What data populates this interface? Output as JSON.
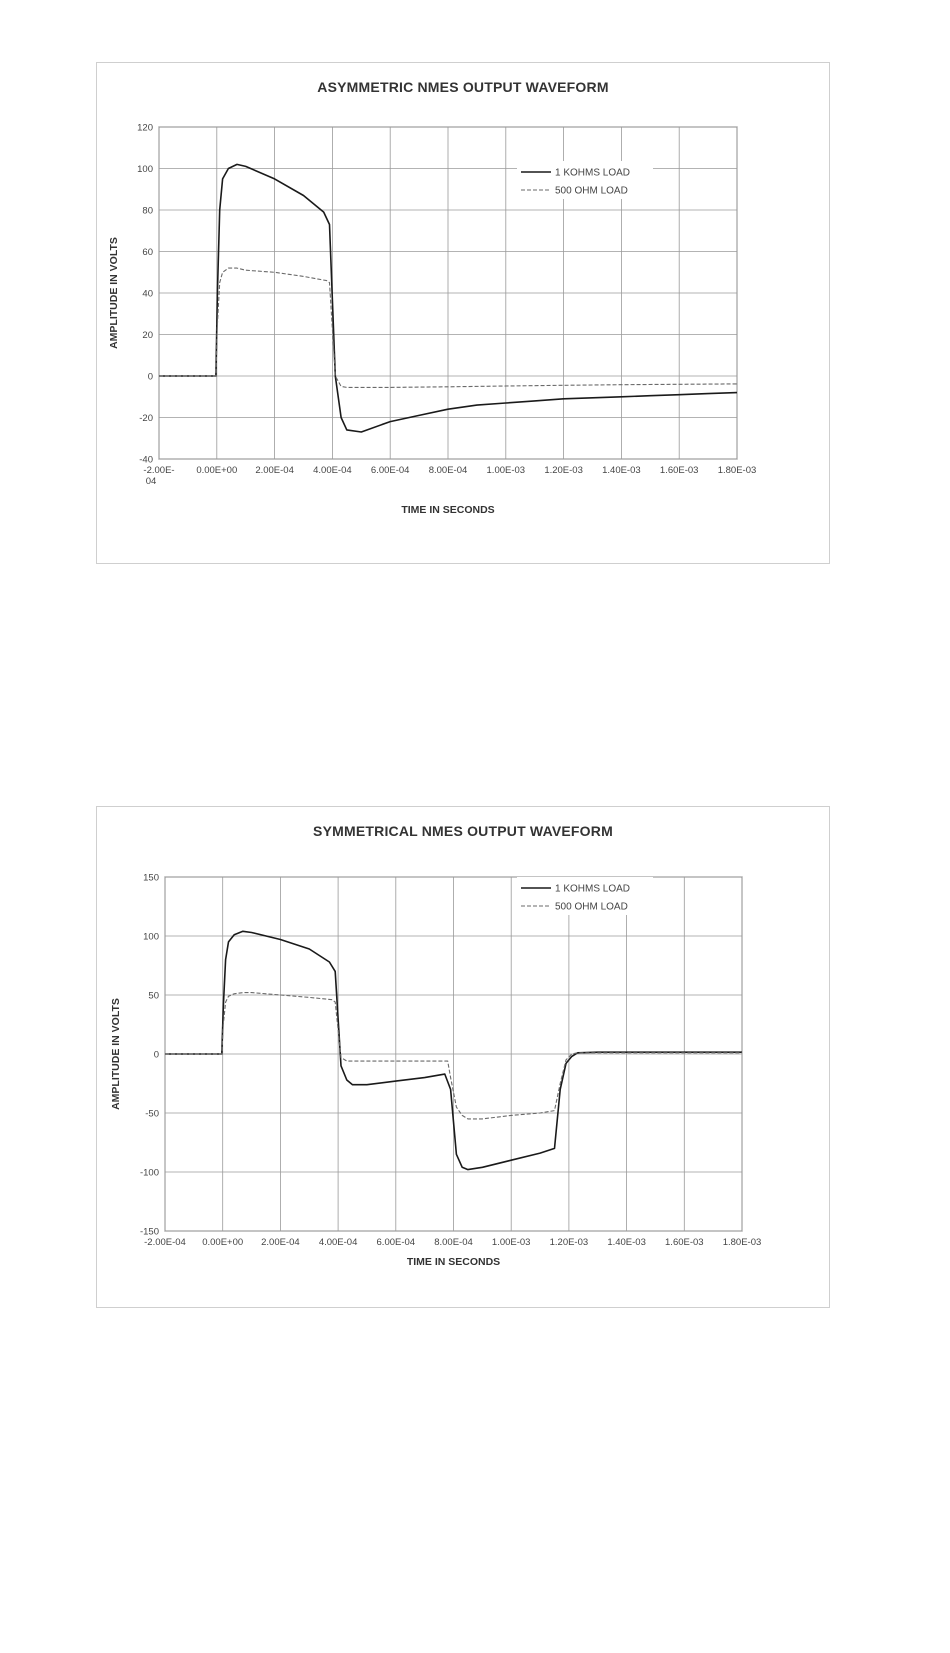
{
  "chart_data": [
    {
      "type": "line",
      "title": "ASYMMETRIC NMES OUTPUT WAVEFORM",
      "xlabel": "TIME IN SECONDS",
      "ylabel": "AMPLITUDE IN VOLTS",
      "xlim": [
        -0.0002,
        0.0018
      ],
      "ylim": [
        -40,
        120
      ],
      "xticks": [
        -0.0002,
        0.0,
        0.0002,
        0.0004,
        0.0006,
        0.0008,
        0.001,
        0.0012,
        0.0014,
        0.0016,
        0.0018
      ],
      "xtick_labels": [
        "-2.00E-04",
        "0.00E+00",
        "2.00E-04",
        "4.00E-04",
        "6.00E-04",
        "8.00E-04",
        "1.00E-03",
        "1.20E-03",
        "1.40E-03",
        "1.60E-03",
        "1.80E-03"
      ],
      "yticks": [
        -40,
        -20,
        0,
        20,
        40,
        60,
        80,
        100,
        120
      ],
      "ytick_labels": [
        "-40",
        "-20",
        "0",
        "20",
        "40",
        "60",
        "80",
        "100",
        "120"
      ],
      "grid": true,
      "legend_position": "top-right",
      "series": [
        {
          "name": "1 KOHMS LOAD",
          "style": "solid",
          "x": [
            -0.0002,
            -3e-06,
            2e-06,
            1e-05,
            2e-05,
            4e-05,
            7e-05,
            0.0001,
            0.0002,
            0.0003,
            0.00037,
            0.00039,
            0.00041,
            0.00043,
            0.00045,
            0.0005,
            0.0006,
            0.0007,
            0.0008,
            0.0009,
            0.001,
            0.0011,
            0.0012,
            0.0013,
            0.0014,
            0.0015,
            0.0016,
            0.0017,
            0.0018
          ],
          "y": [
            0,
            0,
            40,
            80,
            95,
            100,
            102,
            101,
            95,
            87,
            79,
            73,
            0,
            -20,
            -26,
            -27,
            -22,
            -19,
            -16,
            -14,
            -13,
            -12,
            -11,
            -10.5,
            -10,
            -9.5,
            -9,
            -8.5,
            -8
          ]
        },
        {
          "name": "500 OHM LOAD",
          "style": "dashed",
          "x": [
            -0.0002,
            -3e-06,
            2e-06,
            1e-05,
            2e-05,
            4e-05,
            7e-05,
            0.0001,
            0.0002,
            0.0003,
            0.00038,
            0.00039,
            0.00041,
            0.00043,
            0.00045,
            0.0006,
            0.0008,
            0.001,
            0.0012,
            0.0014,
            0.0016,
            0.0018
          ],
          "y": [
            0,
            0,
            25,
            45,
            50,
            52,
            52,
            51,
            50,
            48,
            46,
            45,
            0,
            -5,
            -5.5,
            -5.5,
            -5.2,
            -4.8,
            -4.5,
            -4.2,
            -4,
            -3.8
          ]
        }
      ]
    },
    {
      "type": "line",
      "title": "SYMMETRICAL NMES OUTPUT WAVEFORM",
      "xlabel": "TIME IN SECONDS",
      "ylabel": "AMPLITUDE IN VOLTS",
      "xlim": [
        -0.0002,
        0.0018
      ],
      "ylim": [
        -150,
        150
      ],
      "xticks": [
        -0.0002,
        0.0,
        0.0002,
        0.0004,
        0.0006,
        0.0008,
        0.001,
        0.0012,
        0.0014,
        0.0016,
        0.0018
      ],
      "xtick_labels": [
        "-2.00E-04",
        "0.00E+00",
        "2.00E-04",
        "4.00E-04",
        "6.00E-04",
        "8.00E-04",
        "1.00E-03",
        "1.20E-03",
        "1.40E-03",
        "1.60E-03",
        "1.80E-03"
      ],
      "yticks": [
        -150,
        -100,
        -50,
        0,
        50,
        100,
        150
      ],
      "ytick_labels": [
        "-150",
        "-100",
        "-50",
        "0",
        "50",
        "100",
        "150"
      ],
      "grid": true,
      "legend_position": "top-right",
      "series": [
        {
          "name": "1 KOHMS LOAD",
          "style": "solid",
          "x": [
            -0.0002,
            -3e-06,
            2e-06,
            1e-05,
            2e-05,
            4e-05,
            7e-05,
            0.0001,
            0.0002,
            0.0003,
            0.00037,
            0.00039,
            0.00041,
            0.00043,
            0.00045,
            0.0005,
            0.0006,
            0.0007,
            0.00077,
            0.00079,
            0.00081,
            0.00083,
            0.00085,
            0.0009,
            0.001,
            0.0011,
            0.00115,
            0.00117,
            0.00119,
            0.00121,
            0.00123,
            0.0013,
            0.0014,
            0.0016,
            0.0018
          ],
          "y": [
            0,
            0,
            40,
            80,
            95,
            101,
            104,
            103,
            97,
            89,
            78,
            70,
            -10,
            -22,
            -26,
            -26,
            -23,
            -20,
            -17,
            -30,
            -85,
            -96,
            -98,
            -96,
            -90,
            -84,
            -80,
            -30,
            -8,
            -2,
            1,
            1.5,
            1.5,
            1.5,
            1.5
          ]
        },
        {
          "name": "500 OHM LOAD",
          "style": "dashed",
          "x": [
            -0.0002,
            -3e-06,
            2e-06,
            1e-05,
            2e-05,
            4e-05,
            7e-05,
            0.0001,
            0.0002,
            0.0003,
            0.00038,
            0.00039,
            0.00041,
            0.00043,
            0.00045,
            0.0006,
            0.00078,
            0.00079,
            0.00081,
            0.00083,
            0.00085,
            0.0009,
            0.001,
            0.0011,
            0.00115,
            0.00117,
            0.00119,
            0.00121,
            0.00123,
            0.0013,
            0.0016,
            0.0018
          ],
          "y": [
            0,
            0,
            25,
            44,
            49,
            51,
            52,
            52,
            50,
            48,
            46,
            44,
            -3,
            -6,
            -6,
            -6,
            -6,
            -20,
            -45,
            -52,
            -55,
            -55,
            -52,
            -50,
            -48,
            -25,
            -5,
            0,
            1,
            1,
            1,
            1
          ]
        }
      ]
    }
  ]
}
